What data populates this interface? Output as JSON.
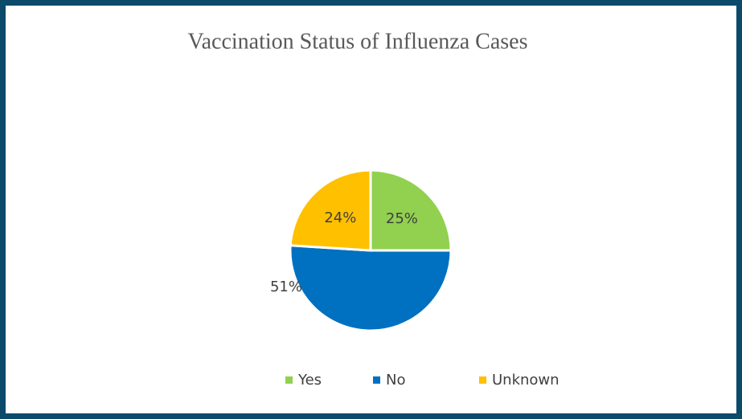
{
  "chart_data": {
    "type": "pie",
    "title": "Vaccination Status of Influenza Cases",
    "categories": [
      "Yes",
      "No",
      "Unknown"
    ],
    "values": [
      25,
      51,
      24
    ],
    "value_labels": [
      "25%",
      "51%",
      "24%"
    ],
    "colors": [
      "#92d050",
      "#0070c0",
      "#ffc000"
    ],
    "legend": "bottom"
  }
}
